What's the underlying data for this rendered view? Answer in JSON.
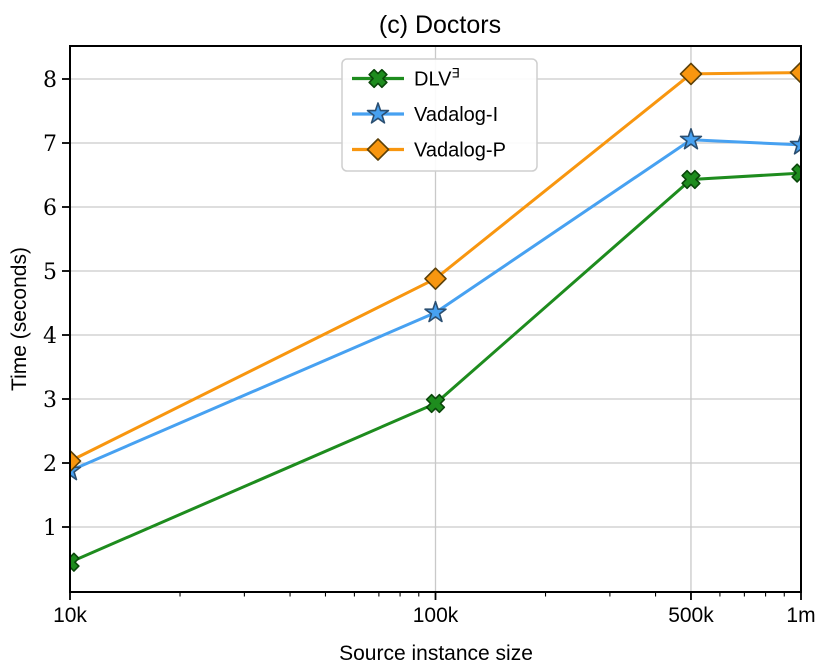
{
  "chart_data": {
    "type": "line",
    "title": "(c) Doctors",
    "xlabel": "Source instance size",
    "ylabel": "Time (seconds)",
    "x_scale": "log",
    "xlim": [
      10000,
      1000000
    ],
    "ylim": [
      0,
      8.52
    ],
    "grid": true,
    "legend_position": "upper center",
    "x": [
      10000,
      100000,
      500000,
      1000000
    ],
    "x_tick_labels": [
      "10k",
      "100k",
      "500k",
      "1m"
    ],
    "y_ticks": [
      1,
      2,
      3,
      4,
      5,
      6,
      7,
      8
    ],
    "series": [
      {
        "name": "DLV∃",
        "label_base": "DLV",
        "label_sup": "∃",
        "marker": "x-cross",
        "color": "#1e8c1e",
        "edge_color": "#0a470a",
        "values": [
          0.45,
          2.93,
          6.43,
          6.53
        ]
      },
      {
        "name": "Vadalog-I",
        "label_base": "Vadalog-I",
        "label_sup": "",
        "marker": "star",
        "color": "#47a1f1",
        "edge_color": "#2b4f71",
        "values": [
          1.88,
          4.35,
          7.05,
          6.97
        ]
      },
      {
        "name": "Vadalog-P",
        "label_base": "Vadalog-P",
        "label_sup": "",
        "marker": "diamond",
        "color": "#f8960f",
        "edge_color": "#5c4008",
        "values": [
          2.03,
          4.88,
          8.08,
          8.1
        ]
      }
    ],
    "colors": {
      "background": "#ffffff",
      "grid": "#c9c9c9",
      "spine": "#000000",
      "legend_border": "#cfcfcf",
      "legend_background": "#ffffff"
    }
  }
}
